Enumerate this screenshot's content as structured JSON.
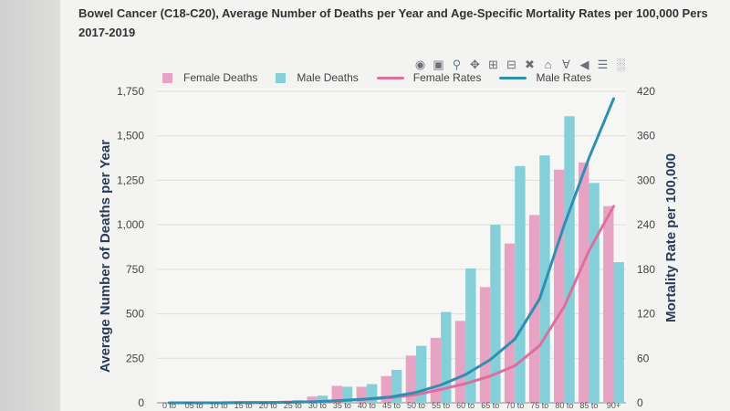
{
  "title_line1": "Bowel Cancer (C18-C20), Average Number of Deaths per Year and Age-Specific Mortality Rates per 100,000 Pers",
  "title_line2": "2017-2019",
  "toolbar": {
    "icons": [
      "camera-icon",
      "save-icon",
      "zoom-icon",
      "pan-icon",
      "zoom-in-icon",
      "zoom-out-icon",
      "autoscale-icon",
      "home-icon",
      "spike-lines-icon",
      "hover-closest-icon",
      "hover-compare-icon",
      "plotly-logo-icon"
    ]
  },
  "legend": [
    {
      "label": "Female Deaths",
      "kind": "bar",
      "color": "#e7a3c3"
    },
    {
      "label": "Male Deaths",
      "kind": "bar",
      "color": "#85cfd8"
    },
    {
      "label": "Female Rates",
      "kind": "line",
      "color": "#dd6f9e"
    },
    {
      "label": "Male Rates",
      "kind": "line",
      "color": "#2e8fb2"
    }
  ],
  "chart_data": {
    "type": "bar",
    "categories": [
      "0 to",
      "05 to",
      "10 to",
      "15 to",
      "20 to",
      "25 to",
      "30 to",
      "35 to",
      "40 to",
      "45 to",
      "50 to",
      "55 to",
      "60 to",
      "65 to",
      "70 to",
      "75 to",
      "80 to",
      "85 to",
      "90+"
    ],
    "series": [
      {
        "name": "Female Deaths",
        "type": "bar",
        "axis": "left",
        "color": "#e7a3c3",
        "values": [
          0,
          0,
          0,
          2,
          5,
          12,
          35,
          95,
          90,
          150,
          265,
          365,
          460,
          650,
          895,
          1055,
          1310,
          1350,
          1105
        ]
      },
      {
        "name": "Male Deaths",
        "type": "bar",
        "axis": "left",
        "color": "#85cfd8",
        "values": [
          0,
          0,
          0,
          2,
          5,
          15,
          40,
          90,
          105,
          185,
          320,
          510,
          755,
          1000,
          1330,
          1390,
          1610,
          1235,
          790
        ]
      },
      {
        "name": "Female Rates",
        "type": "line",
        "axis": "right",
        "color": "#dd6f9e",
        "values": [
          0,
          0,
          0,
          0.2,
          0.4,
          0.8,
          1.5,
          3,
          4.5,
          7,
          11,
          18,
          26,
          36,
          50,
          77,
          130,
          205,
          265
        ]
      },
      {
        "name": "Male Rates",
        "type": "line",
        "axis": "right",
        "color": "#2e8fb2",
        "values": [
          0,
          0,
          0,
          0.2,
          0.4,
          0.8,
          1.6,
          3.2,
          5,
          8,
          14,
          24,
          38,
          58,
          86,
          140,
          240,
          330,
          410
        ]
      }
    ],
    "xlabel": "",
    "ylabel": "Average Number of Deaths per Year",
    "y2label": "Mortality Rate per 100,000",
    "ylim": [
      0,
      1750
    ],
    "y2lim": [
      0,
      420
    ],
    "yticks": [
      "0",
      "250",
      "500",
      "750",
      "1,000",
      "1,250",
      "1,500",
      "1,750"
    ],
    "y2ticks": [
      "0",
      "60",
      "120",
      "180",
      "240",
      "300",
      "360",
      "420"
    ],
    "grid": true,
    "legend_position": "top"
  }
}
